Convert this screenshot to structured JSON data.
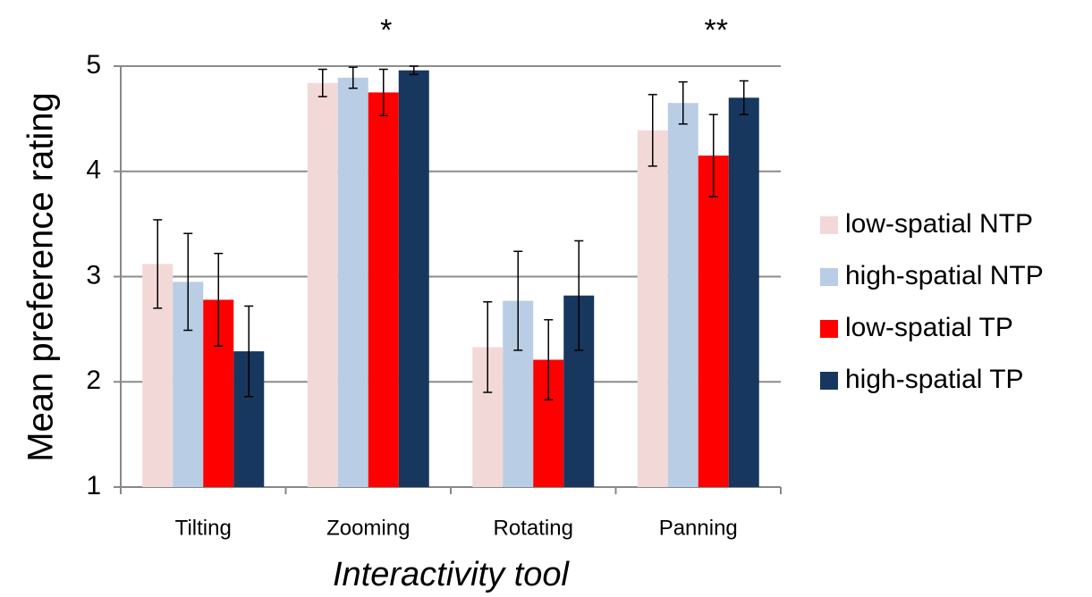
{
  "chart_data": {
    "type": "bar",
    "ylabel": "Mean preference rating",
    "xlabel": "Interactivity tool",
    "categories": [
      "Tilting",
      "Zooming",
      "Rotating",
      "Panning"
    ],
    "series": [
      {
        "name": "low-spatial NTP",
        "color": "#f2d9d8",
        "values": [
          3.12,
          4.84,
          2.33,
          4.39
        ],
        "errors": [
          0.42,
          0.13,
          0.43,
          0.34
        ]
      },
      {
        "name": "high-spatial NTP",
        "color": "#b9cde5",
        "values": [
          2.95,
          4.89,
          2.77,
          4.65
        ],
        "errors": [
          0.46,
          0.1,
          0.47,
          0.2
        ]
      },
      {
        "name": "low-spatial TP",
        "color": "#ff0000",
        "values": [
          2.78,
          4.75,
          2.21,
          4.15
        ],
        "errors": [
          0.44,
          0.22,
          0.38,
          0.39
        ]
      },
      {
        "name": "high-spatial TP",
        "color": "#17375e",
        "values": [
          2.29,
          4.96,
          2.82,
          4.7
        ],
        "errors": [
          0.43,
          0.04,
          0.52,
          0.16
        ]
      }
    ],
    "annotations": [
      {
        "category": 1,
        "text": "*"
      },
      {
        "category": 3,
        "text": "**"
      }
    ],
    "ylim": [
      1,
      5
    ],
    "yticks": [
      1,
      2,
      3,
      4,
      5
    ],
    "grid": true,
    "legend": "right"
  }
}
